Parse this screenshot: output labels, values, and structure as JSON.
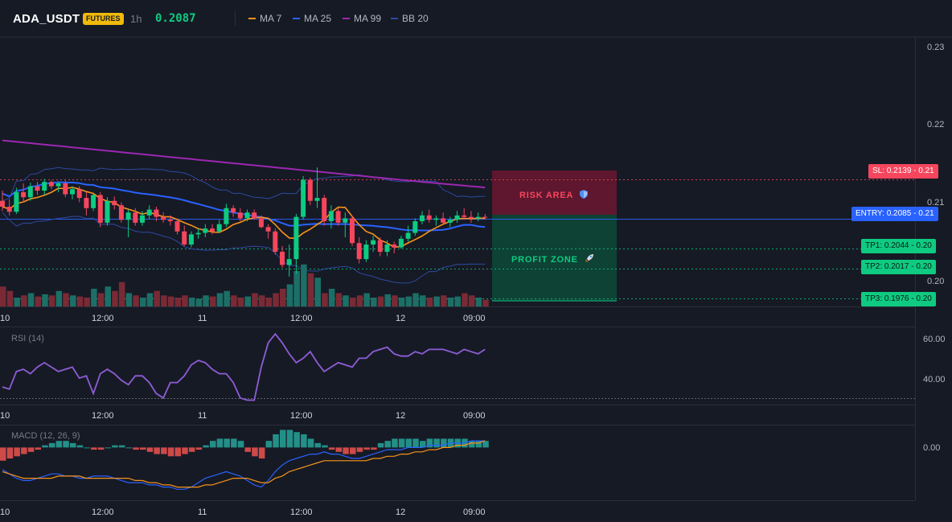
{
  "header": {
    "symbol": "ADA_USDT",
    "badge": "FUTURES",
    "timeframe": "1h",
    "price": "0.2087",
    "legend": [
      {
        "label": "MA 7",
        "color": "#f7931a"
      },
      {
        "label": "MA 25",
        "color": "#2962ff"
      },
      {
        "label": "MA 99",
        "color": "#9c27b0"
      },
      {
        "label": "BB 20",
        "color": "#2d4a9f"
      }
    ]
  },
  "main_chart": {
    "price_axis": [
      "0.23",
      "0.22",
      "0.21",
      "0.20"
    ],
    "zones": {
      "risk_label": "RISK AREA",
      "risk_icon": "shield-icon",
      "profit_label": "PROFIT ZONE",
      "profit_icon": "rocket-icon"
    },
    "levels": [
      {
        "id": "sl",
        "text": "SL: 0.2139 - 0.21",
        "color": "#f6465d",
        "text_color": "#ffffff"
      },
      {
        "id": "entry",
        "text": "ENTRY: 0.2085 - 0.21",
        "color": "#2962ff",
        "text_color": "#ffffff"
      },
      {
        "id": "tp1",
        "text": "TP1: 0.2044 - 0.20",
        "color": "#0ecb81",
        "text_color": "#0b1a12"
      },
      {
        "id": "tp2",
        "text": "TP2: 0.2017 - 0.20",
        "color": "#0ecb81",
        "text_color": "#0b1a12"
      },
      {
        "id": "tp3",
        "text": "TP3: 0.1976 - 0.20",
        "color": "#0ecb81",
        "text_color": "#0b1a12"
      }
    ]
  },
  "time_axis": [
    "10",
    "12:00",
    "11",
    "12:00",
    "12",
    "09:00"
  ],
  "rsi": {
    "label": "RSI (14)",
    "axis": [
      "60.00",
      "40.00"
    ]
  },
  "macd": {
    "label": "MACD (12, 26, 9)",
    "axis": [
      "0.00"
    ]
  },
  "chart_data": {
    "type": "candlestick",
    "symbol": "ADA_USDT",
    "timeframe": "1h",
    "ylim": [
      0.1965,
      0.2335
    ],
    "ohlc": [
      [
        0.211,
        0.2124,
        0.2096,
        0.2102
      ],
      [
        0.2102,
        0.2112,
        0.209,
        0.2095
      ],
      [
        0.2095,
        0.2128,
        0.2092,
        0.2122
      ],
      [
        0.2122,
        0.2134,
        0.2108,
        0.2115
      ],
      [
        0.2115,
        0.2135,
        0.211,
        0.213
      ],
      [
        0.213,
        0.2136,
        0.2118,
        0.2124
      ],
      [
        0.2124,
        0.214,
        0.2118,
        0.2136
      ],
      [
        0.2136,
        0.2138,
        0.2126,
        0.213
      ],
      [
        0.213,
        0.2136,
        0.2122,
        0.2134
      ],
      [
        0.2134,
        0.2138,
        0.2115,
        0.2119
      ],
      [
        0.2119,
        0.213,
        0.2112,
        0.2126
      ],
      [
        0.2126,
        0.213,
        0.2108,
        0.2114
      ],
      [
        0.2114,
        0.2122,
        0.209,
        0.21
      ],
      [
        0.21,
        0.212,
        0.2096,
        0.2118
      ],
      [
        0.2118,
        0.2122,
        0.2074,
        0.208
      ],
      [
        0.208,
        0.2115,
        0.2076,
        0.211
      ],
      [
        0.211,
        0.2116,
        0.2098,
        0.2104
      ],
      [
        0.2104,
        0.2108,
        0.208,
        0.2084
      ],
      [
        0.2084,
        0.2098,
        0.206,
        0.2094
      ],
      [
        0.2094,
        0.21,
        0.2076,
        0.208
      ],
      [
        0.208,
        0.2096,
        0.2076,
        0.209
      ],
      [
        0.209,
        0.2104,
        0.2085,
        0.2098
      ],
      [
        0.2098,
        0.2102,
        0.2082,
        0.2088
      ],
      [
        0.2088,
        0.2094,
        0.208,
        0.2084
      ],
      [
        0.2084,
        0.209,
        0.2076,
        0.2082
      ],
      [
        0.2082,
        0.2086,
        0.2064,
        0.2068
      ],
      [
        0.2068,
        0.2076,
        0.2048,
        0.205
      ],
      [
        0.205,
        0.2068,
        0.2046,
        0.2064
      ],
      [
        0.2064,
        0.2072,
        0.2058,
        0.2066
      ],
      [
        0.2066,
        0.2078,
        0.206,
        0.2072
      ],
      [
        0.2072,
        0.2078,
        0.2064,
        0.2068
      ],
      [
        0.2068,
        0.2084,
        0.2066,
        0.2078
      ],
      [
        0.2078,
        0.2106,
        0.2074,
        0.21
      ],
      [
        0.21,
        0.2104,
        0.2088,
        0.2094
      ],
      [
        0.2094,
        0.21,
        0.2082,
        0.2086
      ],
      [
        0.2086,
        0.2098,
        0.2082,
        0.2094
      ],
      [
        0.2094,
        0.2098,
        0.2084,
        0.2086
      ],
      [
        0.2086,
        0.209,
        0.2072,
        0.2074
      ],
      [
        0.2074,
        0.2078,
        0.2058,
        0.2068
      ],
      [
        0.2068,
        0.2072,
        0.2036,
        0.204
      ],
      [
        0.204,
        0.2048,
        0.2018,
        0.2022
      ],
      [
        0.2022,
        0.205,
        0.2006,
        0.203
      ],
      [
        0.203,
        0.2092,
        0.201,
        0.2088
      ],
      [
        0.2088,
        0.2144,
        0.2084,
        0.2139
      ],
      [
        0.2139,
        0.2142,
        0.2104,
        0.211
      ],
      [
        0.211,
        0.2156,
        0.21,
        0.2114
      ],
      [
        0.2114,
        0.2118,
        0.2076,
        0.2082
      ],
      [
        0.2082,
        0.2104,
        0.2072,
        0.2096
      ],
      [
        0.2096,
        0.21,
        0.2076,
        0.208
      ],
      [
        0.208,
        0.2094,
        0.206,
        0.2086
      ],
      [
        0.2086,
        0.209,
        0.2048,
        0.2052
      ],
      [
        0.2052,
        0.206,
        0.2024,
        0.203
      ],
      [
        0.203,
        0.2056,
        0.2026,
        0.205
      ],
      [
        0.205,
        0.2062,
        0.204,
        0.2056
      ],
      [
        0.2056,
        0.206,
        0.2034,
        0.204
      ],
      [
        0.204,
        0.2056,
        0.2034,
        0.205
      ],
      [
        0.205,
        0.2054,
        0.2038,
        0.2046
      ],
      [
        0.2046,
        0.2062,
        0.2044,
        0.2058
      ],
      [
        0.2058,
        0.2076,
        0.2054,
        0.2066
      ],
      [
        0.2066,
        0.2086,
        0.2062,
        0.2082
      ],
      [
        0.2082,
        0.2096,
        0.2078,
        0.209
      ],
      [
        0.209,
        0.2098,
        0.208,
        0.2084
      ],
      [
        0.2084,
        0.209,
        0.2076,
        0.2086
      ],
      [
        0.2086,
        0.2094,
        0.2078,
        0.208
      ],
      [
        0.208,
        0.2088,
        0.2074,
        0.2084
      ],
      [
        0.2084,
        0.2096,
        0.208,
        0.209
      ],
      [
        0.209,
        0.21,
        0.2084,
        0.2088
      ],
      [
        0.2088,
        0.2096,
        0.208,
        0.2086
      ],
      [
        0.2086,
        0.2094,
        0.2082,
        0.2088
      ],
      [
        0.2088,
        0.2092,
        0.2084,
        0.2087
      ]
    ],
    "volume": [
      18,
      14,
      8,
      10,
      12,
      9,
      11,
      10,
      14,
      12,
      10,
      9,
      8,
      16,
      12,
      18,
      14,
      22,
      12,
      10,
      8,
      12,
      14,
      10,
      9,
      8,
      10,
      8,
      7,
      10,
      9,
      12,
      14,
      10,
      8,
      9,
      12,
      10,
      8,
      12,
      16,
      20,
      32,
      38,
      30,
      26,
      12,
      16,
      12,
      10,
      8,
      10,
      12,
      8,
      9,
      11,
      10,
      8,
      9,
      12,
      10,
      8,
      9,
      10,
      8,
      9,
      12,
      10,
      8,
      6
    ],
    "volume_ylim": [
      0,
      40
    ],
    "rsi": [
      38,
      37,
      45,
      46,
      44,
      47,
      49,
      47,
      45,
      46,
      47,
      42,
      43,
      35,
      44,
      46,
      44,
      41,
      39,
      43,
      43,
      40,
      35,
      33,
      40,
      40,
      43,
      48,
      50,
      49,
      46,
      44,
      44,
      40,
      33,
      32,
      32,
      47,
      58,
      62,
      58,
      53,
      49,
      51,
      54,
      49,
      45,
      47,
      49,
      48,
      47,
      51,
      51,
      54,
      55,
      56,
      53,
      52,
      52,
      54,
      53,
      55,
      55,
      55,
      54,
      53,
      55,
      54,
      53,
      55
    ],
    "rsi_ylim": [
      30,
      65
    ],
    "macd_histogram": [
      -0.0006,
      -0.0005,
      -0.0004,
      -0.0003,
      -0.0002,
      -0.0001,
      0.0001,
      0.0002,
      0.0003,
      0.0003,
      0.0002,
      0.0001,
      0.0,
      -0.0001,
      -0.0001,
      0.0,
      0.0001,
      0.0001,
      0.0,
      -0.0001,
      -0.0001,
      -0.0002,
      -0.0003,
      -0.0003,
      -0.0004,
      -0.0004,
      -0.0003,
      -0.0002,
      -0.0001,
      0.0001,
      0.0003,
      0.0004,
      0.0004,
      0.0004,
      0.0003,
      -0.0002,
      -0.0004,
      -0.0005,
      0.0003,
      0.0006,
      0.0008,
      0.0008,
      0.0007,
      0.0006,
      0.0004,
      0.0002,
      0.0001,
      -0.0001,
      -0.0002,
      -0.0003,
      -0.0003,
      -0.0002,
      -0.0001,
      -0.0001,
      0.0002,
      0.0003,
      0.0004,
      0.0004,
      0.0004,
      0.0004,
      0.0003,
      0.0004,
      0.0004,
      0.0004,
      0.0004,
      0.0004,
      0.0004,
      0.0003,
      0.0003,
      0.0003
    ],
    "macd_line": [
      -0.001,
      -0.0012,
      -0.0014,
      -0.0015,
      -0.0015,
      -0.0014,
      -0.0013,
      -0.0012,
      -0.0012,
      -0.0013,
      -0.0013,
      -0.0014,
      -0.0014,
      -0.0013,
      -0.0013,
      -0.0013,
      -0.0014,
      -0.0015,
      -0.0016,
      -0.0016,
      -0.0016,
      -0.0017,
      -0.0017,
      -0.0018,
      -0.0018,
      -0.0019,
      -0.0019,
      -0.0018,
      -0.0016,
      -0.0014,
      -0.0013,
      -0.0012,
      -0.0011,
      -0.0012,
      -0.0013,
      -0.0015,
      -0.0017,
      -0.0018,
      -0.0015,
      -0.0011,
      -0.0008,
      -0.0006,
      -0.0005,
      -0.0004,
      -0.0003,
      -0.0003,
      -0.0002,
      -0.0003,
      -0.0003,
      -0.0004,
      -0.0005,
      -0.0005,
      -0.0004,
      -0.0003,
      -0.0002,
      -0.0001,
      -0.0001,
      -0.0001,
      0.0,
      0.0,
      0.0,
      0.0001,
      0.0001,
      0.0001,
      0.0002,
      0.0002,
      0.0002,
      0.0003,
      0.0003,
      0.0003
    ],
    "signal_line": [
      -0.0011,
      -0.0012,
      -0.0013,
      -0.0014,
      -0.0014,
      -0.0014,
      -0.0014,
      -0.0014,
      -0.0013,
      -0.0013,
      -0.0013,
      -0.0013,
      -0.0014,
      -0.0014,
      -0.0014,
      -0.0014,
      -0.0014,
      -0.0014,
      -0.0014,
      -0.0015,
      -0.0015,
      -0.0016,
      -0.0016,
      -0.0017,
      -0.0017,
      -0.0018,
      -0.0018,
      -0.0018,
      -0.0018,
      -0.0017,
      -0.0017,
      -0.0016,
      -0.0015,
      -0.0014,
      -0.0014,
      -0.0014,
      -0.0015,
      -0.0016,
      -0.0016,
      -0.0014,
      -0.0013,
      -0.0011,
      -0.001,
      -0.0009,
      -0.0008,
      -0.0007,
      -0.0006,
      -0.0006,
      -0.0006,
      -0.0006,
      -0.0006,
      -0.0006,
      -0.0006,
      -0.0005,
      -0.0005,
      -0.0004,
      -0.0004,
      -0.0003,
      -0.0003,
      -0.0002,
      -0.0002,
      -0.0001,
      -0.0001,
      0.0,
      0.0,
      0.0001,
      0.0001,
      0.0002,
      0.0002,
      0.0003
    ],
    "macd_ylim": [
      -0.0024,
      0.001
    ],
    "levels": {
      "sl": 0.2139,
      "entry": 0.2085,
      "tp1": 0.2044,
      "tp2": 0.2017,
      "tp3": 0.1976
    }
  }
}
